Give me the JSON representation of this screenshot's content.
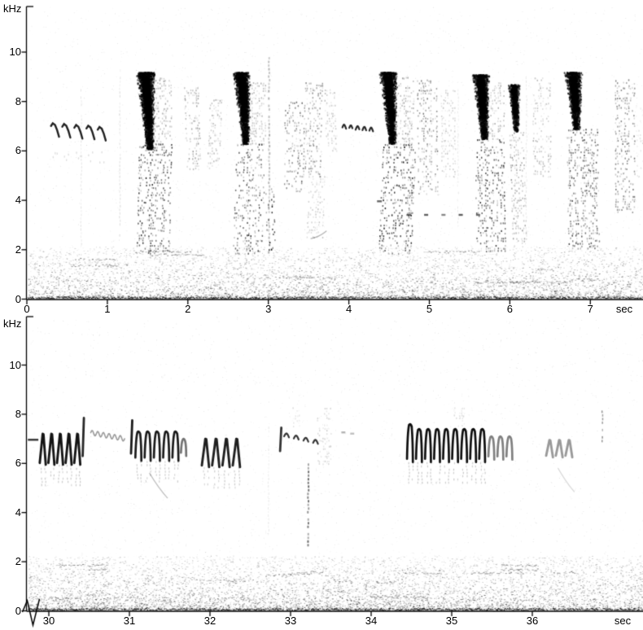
{
  "colors": {
    "ink": "#000000",
    "background": "#ffffff"
  },
  "chart_data": {
    "type": "heatmap",
    "subtype": "audio-spectrogram",
    "title": "",
    "legend": "none",
    "grid": false,
    "panels": [
      {
        "name": "spectrogram-top",
        "ylabel": "kHz",
        "xlabel": "sec",
        "y_ticks": [
          10,
          8,
          6,
          4,
          2,
          0
        ],
        "x_ticks": [
          0,
          1,
          2,
          3,
          4,
          5,
          6,
          7
        ],
        "x_range": [
          0,
          7.66
        ],
        "y_range": [
          0,
          11.8
        ],
        "axis_break": false,
        "px": {
          "x0": 33,
          "t0": 0,
          "psec": 98.9,
          "y0": 367.5,
          "pkhz": 30.35,
          "top": 8,
          "axis_y": 368,
          "left": 32.5,
          "right": 790,
          "khz_y": 3
        },
        "noise": {
          "f_top": 2.1,
          "count": 6500,
          "speckle": 2400,
          "wisps": 13
        },
        "elements": [
          {
            "kind": "intro_note",
            "t": 0.3,
            "f": 6.95
          },
          {
            "kind": "intro_note",
            "t": 0.44,
            "f": 6.92
          },
          {
            "kind": "intro_note",
            "t": 0.59,
            "f": 6.88
          },
          {
            "kind": "intro_note",
            "t": 0.74,
            "f": 6.85
          },
          {
            "kind": "intro_note",
            "t": 0.88,
            "f": 6.8
          },
          {
            "kind": "vline",
            "t": 0.67,
            "f0": 2.2,
            "f1": 8.8,
            "alpha": 0.1,
            "lw": 1.2
          },
          {
            "kind": "vline",
            "t": 1.15,
            "f0": 2.5,
            "f1": 9.3,
            "alpha": 0.12,
            "lw": 1.2
          },
          {
            "kind": "blob",
            "t0": 1.36,
            "t1": 1.57,
            "f0": 6.1,
            "f1": 9.2,
            "dark": 0.95
          },
          {
            "kind": "column",
            "t0": 1.39,
            "t1": 1.79,
            "f0": 1.9,
            "f1": 6.3,
            "dark": 0.72
          },
          {
            "kind": "column",
            "t0": 1.57,
            "t1": 1.8,
            "f0": 6.3,
            "f1": 9.0,
            "dark": 0.32
          },
          {
            "kind": "column",
            "t0": 1.95,
            "t1": 2.13,
            "f0": 5.3,
            "f1": 8.6,
            "dark": 0.33
          },
          {
            "kind": "column",
            "t0": 2.27,
            "t1": 2.43,
            "f0": 5.3,
            "f1": 8.2,
            "dark": 0.27
          },
          {
            "kind": "blob",
            "t0": 2.56,
            "t1": 2.76,
            "f0": 6.3,
            "f1": 9.2,
            "dark": 0.9
          },
          {
            "kind": "column",
            "t0": 2.6,
            "t1": 2.97,
            "f0": 1.9,
            "f1": 6.3,
            "dark": 0.68
          },
          {
            "kind": "column",
            "t0": 2.76,
            "t1": 2.96,
            "f0": 6.3,
            "f1": 8.8,
            "dark": 0.3
          },
          {
            "kind": "vline",
            "t": 3.0,
            "f0": 1.8,
            "f1": 9.8,
            "alpha": 0.3,
            "lw": 2
          },
          {
            "kind": "column",
            "t0": 2.96,
            "t1": 3.06,
            "f0": 1.9,
            "f1": 4.5,
            "dark": 0.8
          },
          {
            "kind": "column",
            "t0": 3.2,
            "t1": 3.42,
            "f0": 4.4,
            "f1": 8.0,
            "dark": 0.5
          },
          {
            "kind": "column",
            "t0": 3.45,
            "t1": 3.67,
            "f0": 5.0,
            "f1": 8.8,
            "dark": 0.42
          },
          {
            "kind": "column",
            "t0": 3.5,
            "t1": 3.7,
            "f0": 2.5,
            "f1": 5.0,
            "dark": 0.2
          },
          {
            "kind": "streak",
            "t0": 3.53,
            "f0": 2.45,
            "t1": 3.72,
            "f1": 2.75,
            "alpha": 0.3
          },
          {
            "kind": "column",
            "t0": 3.69,
            "t1": 3.82,
            "f0": 6.0,
            "f1": 8.5,
            "dark": 0.22
          },
          {
            "kind": "wave",
            "t0": 3.92,
            "t1": 4.34,
            "fa": 6.95,
            "fb": 6.8,
            "amp": 0.12,
            "cycles": 5,
            "alpha": 0.85,
            "lw": 2.2,
            "broken": true
          },
          {
            "kind": "dash",
            "t": 4.35,
            "f": 4.0,
            "len": 0.06,
            "dark": 0.6
          },
          {
            "kind": "blob",
            "t0": 4.38,
            "t1": 4.58,
            "f0": 6.3,
            "f1": 9.2,
            "dark": 0.95
          },
          {
            "kind": "column",
            "t0": 4.42,
            "t1": 4.82,
            "f0": 1.9,
            "f1": 6.3,
            "dark": 0.75
          },
          {
            "kind": "column",
            "t0": 4.58,
            "t1": 4.8,
            "f0": 6.3,
            "f1": 9.0,
            "dark": 0.33
          },
          {
            "kind": "column",
            "t0": 4.84,
            "t1": 5.08,
            "f0": 4.3,
            "f1": 8.9,
            "dark": 0.45
          },
          {
            "kind": "column",
            "t0": 5.14,
            "t1": 5.32,
            "f0": 5.0,
            "f1": 8.5,
            "dark": 0.2
          },
          {
            "kind": "dots_row",
            "t0": 4.72,
            "dt": 0.215,
            "n": 5,
            "f": 3.45,
            "dark": 0.65
          },
          {
            "kind": "blob",
            "t0": 5.53,
            "t1": 5.73,
            "f0": 6.5,
            "f1": 9.1,
            "dark": 0.9
          },
          {
            "kind": "column",
            "t0": 5.56,
            "t1": 5.93,
            "f0": 2.0,
            "f1": 6.5,
            "dark": 0.7
          },
          {
            "kind": "column",
            "t0": 5.73,
            "t1": 5.93,
            "f0": 6.5,
            "f1": 8.8,
            "dark": 0.3
          },
          {
            "kind": "blob",
            "t0": 5.97,
            "t1": 6.11,
            "f0": 6.8,
            "f1": 8.7,
            "dark": 0.8
          },
          {
            "kind": "column",
            "t0": 5.99,
            "t1": 6.16,
            "f0": 2.2,
            "f1": 6.8,
            "dark": 0.35
          },
          {
            "kind": "column",
            "t0": 6.28,
            "t1": 6.5,
            "f0": 5.0,
            "f1": 9.0,
            "dark": 0.28
          },
          {
            "kind": "blob",
            "t0": 6.68,
            "t1": 6.88,
            "f0": 6.9,
            "f1": 9.2,
            "dark": 0.9
          },
          {
            "kind": "column",
            "t0": 6.7,
            "t1": 7.08,
            "f0": 2.0,
            "f1": 6.9,
            "dark": 0.62
          },
          {
            "kind": "column",
            "t0": 7.3,
            "t1": 7.54,
            "f0": 3.5,
            "f1": 8.9,
            "dark": 0.5
          },
          {
            "kind": "column",
            "t0": 7.56,
            "t1": 7.64,
            "f0": 5.0,
            "f1": 8.0,
            "dark": 0.15
          },
          {
            "kind": "vline",
            "t": 6.2,
            "f0": 2.5,
            "f1": 9.0,
            "alpha": 0.1,
            "lw": 1.2
          },
          {
            "kind": "vline",
            "t": 5.35,
            "f0": 3.0,
            "f1": 8.5,
            "alpha": 0.08,
            "lw": 1.2
          }
        ]
      },
      {
        "name": "spectrogram-bottom",
        "ylabel": "kHz",
        "xlabel": "sec",
        "y_ticks": [
          10,
          8,
          6,
          4,
          2,
          0
        ],
        "x_ticks": [
          30,
          31,
          32,
          33,
          34,
          35,
          36
        ],
        "x_range": [
          29.73,
          37.37
        ],
        "y_range": [
          0,
          11.9
        ],
        "axis_break": true,
        "px": {
          "x0": 60,
          "t0": 30,
          "psec": 99,
          "y0": 750.5,
          "pkhz": 30.2,
          "top": 389,
          "axis_y": 751,
          "left": 32.5,
          "right": 790,
          "khz_y": 390
        },
        "noise": {
          "f_top": 2.2,
          "count": 8000,
          "speckle": 2600,
          "wisps": 17
        },
        "elements": [
          {
            "kind": "dash",
            "t": 29.74,
            "f": 7.0,
            "len": 0.13,
            "dark": 0.8
          },
          {
            "kind": "chevron_seq",
            "t0": 29.93,
            "dt": 0.107,
            "n": 5,
            "f0": 6.15,
            "f1": 7.2,
            "shape": "caret",
            "dark": 0.92,
            "tails": true
          },
          {
            "kind": "spike",
            "t": 30.42,
            "f0": 6.3,
            "f1": 7.85,
            "dark": 0.85
          },
          {
            "kind": "wave",
            "t0": 30.52,
            "t1": 30.94,
            "fa": 7.25,
            "fb": 7.0,
            "amp": 0.1,
            "cycles": 6,
            "alpha": 0.4,
            "lw": 1.6
          },
          {
            "kind": "spike",
            "t": 31.02,
            "f0": 6.4,
            "f1": 7.75,
            "dark": 0.9
          },
          {
            "kind": "chevron_seq",
            "t0": 31.12,
            "dt": 0.115,
            "n": 5,
            "f0": 6.3,
            "f1": 7.3,
            "shape": "arch",
            "dark": 0.9,
            "tails": true
          },
          {
            "kind": "chevron_seq",
            "t0": 31.68,
            "dt": 0.1,
            "n": 1,
            "f0": 6.5,
            "f1": 7.0,
            "shape": "arch",
            "dark": 0.55
          },
          {
            "kind": "streak",
            "t0": 31.25,
            "f0": 5.6,
            "t1": 31.47,
            "f1": 4.6,
            "alpha": 0.25
          },
          {
            "kind": "chevron_seq",
            "t0": 31.95,
            "dt": 0.128,
            "n": 4,
            "f0": 6.05,
            "f1": 7.0,
            "shape": "caret",
            "dark": 0.88,
            "tails": true
          },
          {
            "kind": "vline",
            "t": 32.72,
            "f0": 3.0,
            "f1": 7.5,
            "alpha": 0.08,
            "lw": 1.2
          },
          {
            "kind": "spike",
            "t": 32.87,
            "f0": 6.5,
            "f1": 7.45,
            "dark": 0.8
          },
          {
            "kind": "wave",
            "t0": 32.92,
            "t1": 33.4,
            "fa": 7.1,
            "fb": 6.75,
            "amp": 0.14,
            "cycles": 4,
            "alpha": 0.8,
            "lw": 2.2,
            "broken": true
          },
          {
            "kind": "vline",
            "t": 33.21,
            "f0": 2.6,
            "f1": 6.0,
            "alpha": 0.55,
            "lw": 2
          },
          {
            "kind": "column",
            "t0": 33.32,
            "t1": 33.5,
            "f0": 6.0,
            "f1": 8.3,
            "dark": 0.18
          },
          {
            "kind": "column",
            "t0": 33.0,
            "t1": 33.1,
            "f0": 7.5,
            "f1": 8.3,
            "dark": 0.12
          },
          {
            "kind": "dash",
            "t": 33.63,
            "f": 7.3,
            "len": 0.05,
            "dark": 0.3
          },
          {
            "kind": "dash",
            "t": 33.74,
            "f": 7.25,
            "len": 0.05,
            "dark": 0.25
          },
          {
            "kind": "chevron_seq",
            "t0": 34.49,
            "dt": 0.112,
            "n": 9,
            "f0": 6.25,
            "f1": 7.4,
            "shape": "arch",
            "dark": 0.95,
            "tails": true,
            "first_hi": 7.6
          },
          {
            "kind": "chevron_seq",
            "t0": 35.5,
            "dt": 0.112,
            "n": 3,
            "f0": 6.35,
            "f1": 7.1,
            "shape": "arch",
            "dark": 0.5
          },
          {
            "kind": "column",
            "t0": 35.02,
            "t1": 35.14,
            "f0": 7.5,
            "f1": 8.3,
            "dark": 0.15
          },
          {
            "kind": "chevron_seq",
            "t0": 36.22,
            "dt": 0.12,
            "n": 3,
            "f0": 6.45,
            "f1": 6.95,
            "shape": "caret",
            "dark": 0.4
          },
          {
            "kind": "vline",
            "t": 36.86,
            "f0": 6.8,
            "f1": 8.15,
            "alpha": 0.4,
            "lw": 1.5
          },
          {
            "kind": "streak",
            "t0": 36.32,
            "f0": 5.8,
            "t1": 36.52,
            "f1": 4.85,
            "alpha": 0.15
          }
        ]
      }
    ]
  }
}
